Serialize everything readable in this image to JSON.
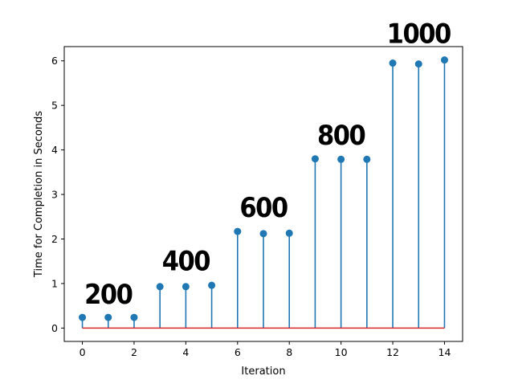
{
  "chart_data": {
    "type": "stem",
    "x": [
      0,
      1,
      2,
      3,
      4,
      5,
      6,
      7,
      8,
      9,
      10,
      11,
      12,
      13,
      14
    ],
    "values": [
      0.24,
      0.24,
      0.24,
      0.93,
      0.93,
      0.96,
      2.17,
      2.12,
      2.13,
      3.8,
      3.79,
      3.79,
      5.95,
      5.93,
      6.02
    ],
    "xlabel": "Iteration",
    "ylabel": "Time for Completion in Seconds",
    "xlim": [
      -0.7,
      14.7
    ],
    "ylim": [
      -0.3,
      6.32
    ],
    "xticks": [
      0,
      2,
      4,
      6,
      8,
      10,
      12,
      14
    ],
    "yticks": [
      0,
      1,
      2,
      3,
      4,
      5,
      6
    ],
    "grid": false,
    "colors": {
      "stem": "#1f77b4",
      "baseline": "#d62728"
    },
    "annotations": [
      {
        "text": "200",
        "x": 1,
        "y": 0.55
      },
      {
        "text": "400",
        "x": 4,
        "y": 1.3
      },
      {
        "text": "600",
        "x": 7,
        "y": 2.5
      },
      {
        "text": "800",
        "x": 10,
        "y": 4.12
      },
      {
        "text": "1000",
        "x": 13,
        "y": 6.4
      }
    ]
  }
}
